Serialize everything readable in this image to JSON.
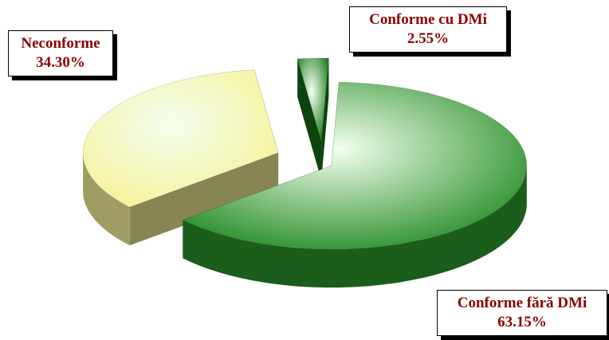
{
  "chart_data": {
    "type": "pie",
    "categories": [
      "Conforme cu DMi",
      "Conforme fără DMi",
      "Neconforme"
    ],
    "values": [
      2.55,
      63.15,
      34.3
    ],
    "value_labels": [
      "2.55%",
      "63.15%",
      "34.30%"
    ],
    "colors": [
      "#1a7a1a",
      "#2a8f2a",
      "#f6f29a"
    ]
  }
}
